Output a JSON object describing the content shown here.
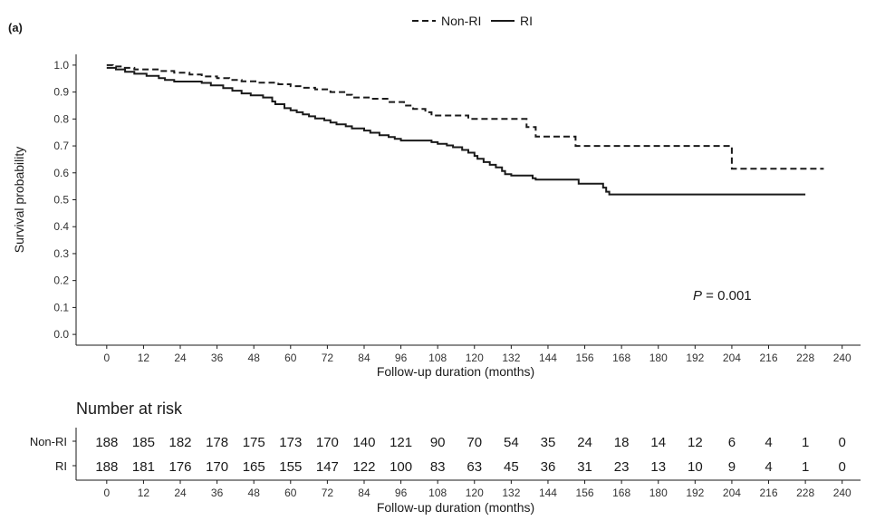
{
  "panel_label": "(a)",
  "legend": {
    "items": [
      {
        "label": "Non-RI",
        "dash": true
      },
      {
        "label": "RI",
        "dash": false
      }
    ]
  },
  "pvalue": {
    "prefix": "P",
    "text": " = 0.001"
  },
  "risk_table": {
    "title": "Number at risk",
    "rows": [
      {
        "label": "Non-RI",
        "values": [
          "188",
          "185",
          "182",
          "178",
          "175",
          "173",
          "170",
          "140",
          "121",
          "90",
          "70",
          "54",
          "35",
          "24",
          "18",
          "14",
          "12",
          "6",
          "4",
          "1",
          "0"
        ]
      },
      {
        "label": "RI",
        "values": [
          "188",
          "181",
          "176",
          "170",
          "165",
          "155",
          "147",
          "122",
          "100",
          "83",
          "63",
          "45",
          "36",
          "31",
          "23",
          "13",
          "10",
          "9",
          "4",
          "1",
          "0"
        ]
      }
    ],
    "xlabel": "Follow-up duration (months)"
  },
  "chart_data": {
    "type": "line",
    "title": "",
    "xlabel": "Follow-up duration (months)",
    "ylabel": "Survival probability",
    "xlim": [
      -10,
      246
    ],
    "ylim": [
      -0.04,
      1.04
    ],
    "xticks": [
      0,
      12,
      24,
      36,
      48,
      60,
      72,
      84,
      96,
      108,
      120,
      132,
      144,
      156,
      168,
      180,
      192,
      204,
      216,
      228,
      240
    ],
    "yticks": [
      0.0,
      0.1,
      0.2,
      0.3,
      0.4,
      0.5,
      0.6,
      0.7,
      0.8,
      0.9,
      1.0
    ],
    "ytick_labels": [
      "0.0",
      "0.1",
      "0.2",
      "0.3",
      "0.4",
      "0.5",
      "0.6",
      "0.7",
      "0.8",
      "0.9",
      "1.0"
    ],
    "grid": false,
    "legend_position": "top",
    "series": [
      {
        "name": "Non-RI",
        "style": "dashed",
        "color": "#1a1a1a",
        "steps": [
          [
            0,
            1.0
          ],
          [
            2,
            0.995
          ],
          [
            5,
            0.99
          ],
          [
            9,
            0.984
          ],
          [
            17,
            0.978
          ],
          [
            22,
            0.972
          ],
          [
            27,
            0.965
          ],
          [
            31,
            0.958
          ],
          [
            36,
            0.952
          ],
          [
            40,
            0.945
          ],
          [
            44,
            0.94
          ],
          [
            49,
            0.935
          ],
          [
            56,
            0.929
          ],
          [
            60,
            0.922
          ],
          [
            64,
            0.916
          ],
          [
            68,
            0.91
          ],
          [
            73,
            0.9
          ],
          [
            78,
            0.89
          ],
          [
            80,
            0.88
          ],
          [
            86,
            0.875
          ],
          [
            92,
            0.863
          ],
          [
            97,
            0.85
          ],
          [
            100,
            0.837
          ],
          [
            104,
            0.825
          ],
          [
            106,
            0.813
          ],
          [
            118,
            0.8
          ],
          [
            128,
            0.8
          ],
          [
            137,
            0.77
          ],
          [
            140,
            0.735
          ],
          [
            153,
            0.7
          ],
          [
            164,
            0.7
          ],
          [
            204,
            0.615
          ],
          [
            234,
            0.615
          ]
        ]
      },
      {
        "name": "RI",
        "style": "solid",
        "color": "#1a1a1a",
        "steps": [
          [
            0,
            0.99
          ],
          [
            3,
            0.984
          ],
          [
            6,
            0.975
          ],
          [
            9,
            0.968
          ],
          [
            13,
            0.96
          ],
          [
            17,
            0.952
          ],
          [
            19,
            0.945
          ],
          [
            22,
            0.939
          ],
          [
            31,
            0.934
          ],
          [
            34,
            0.925
          ],
          [
            38,
            0.915
          ],
          [
            41,
            0.905
          ],
          [
            44,
            0.895
          ],
          [
            47,
            0.888
          ],
          [
            51,
            0.88
          ],
          [
            54,
            0.865
          ],
          [
            55,
            0.855
          ],
          [
            58,
            0.84
          ],
          [
            60,
            0.832
          ],
          [
            62,
            0.825
          ],
          [
            64,
            0.817
          ],
          [
            66,
            0.81
          ],
          [
            68,
            0.802
          ],
          [
            71,
            0.795
          ],
          [
            73,
            0.787
          ],
          [
            75,
            0.78
          ],
          [
            78,
            0.773
          ],
          [
            80,
            0.765
          ],
          [
            84,
            0.757
          ],
          [
            86,
            0.749
          ],
          [
            89,
            0.74
          ],
          [
            92,
            0.733
          ],
          [
            94,
            0.726
          ],
          [
            96,
            0.72
          ],
          [
            106,
            0.714
          ],
          [
            108,
            0.708
          ],
          [
            111,
            0.702
          ],
          [
            113,
            0.695
          ],
          [
            116,
            0.685
          ],
          [
            118,
            0.675
          ],
          [
            120,
            0.663
          ],
          [
            121,
            0.652
          ],
          [
            123,
            0.64
          ],
          [
            125,
            0.63
          ],
          [
            127,
            0.62
          ],
          [
            129,
            0.607
          ],
          [
            130,
            0.595
          ],
          [
            132,
            0.59
          ],
          [
            139,
            0.58
          ],
          [
            140,
            0.575
          ],
          [
            154,
            0.56
          ],
          [
            162,
            0.545
          ],
          [
            163,
            0.53
          ],
          [
            164,
            0.52
          ],
          [
            228,
            0.52
          ]
        ]
      }
    ]
  }
}
